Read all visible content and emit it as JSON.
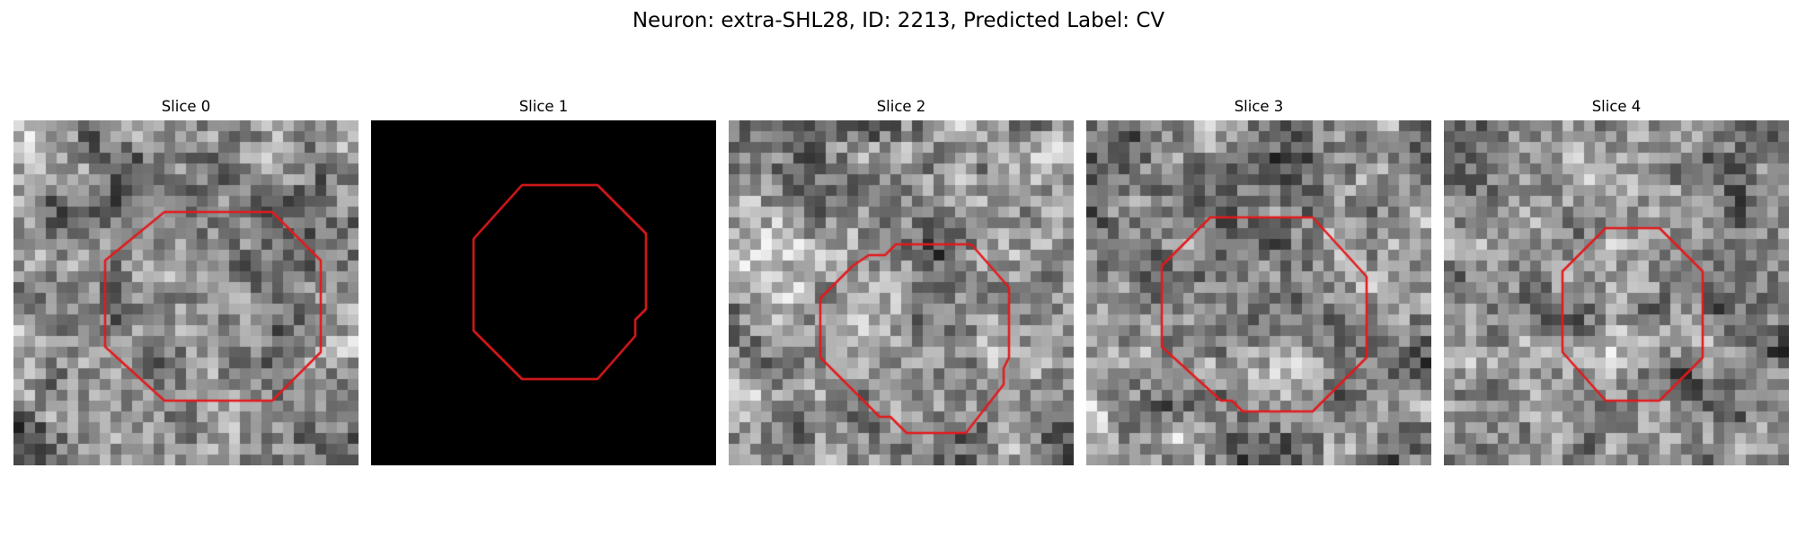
{
  "figure": {
    "title": "Neuron: extra-SHL28, ID: 2213, Predicted Label: CV"
  },
  "panels": [
    {
      "title": "Slice 0",
      "background": "grayscale-noise",
      "seed": 11,
      "contour": [
        [
          14,
          8.5
        ],
        [
          24,
          8.5
        ],
        [
          28.5,
          13
        ],
        [
          28.5,
          21.5
        ],
        [
          24,
          26
        ],
        [
          14,
          26
        ],
        [
          8.5,
          21
        ],
        [
          8.5,
          13
        ]
      ]
    },
    {
      "title": "Slice 1",
      "background": "black",
      "seed": 0,
      "contour": [
        [
          14,
          6
        ],
        [
          21,
          6
        ],
        [
          25.5,
          10.5
        ],
        [
          25.5,
          17.5
        ],
        [
          24.5,
          18.5
        ],
        [
          24.5,
          20
        ],
        [
          21,
          24
        ],
        [
          14,
          24
        ],
        [
          9.5,
          19.5
        ],
        [
          9.5,
          11
        ]
      ]
    },
    {
      "title": "Slice 2",
      "background": "grayscale-noise",
      "seed": 23,
      "contour": [
        [
          16.5,
          11.5
        ],
        [
          22.5,
          11.5
        ],
        [
          26,
          15.5
        ],
        [
          26,
          22
        ],
        [
          25.5,
          23
        ],
        [
          25.5,
          24.5
        ],
        [
          22,
          29
        ],
        [
          16.5,
          29
        ],
        [
          15,
          27.5
        ],
        [
          14,
          27.5
        ],
        [
          8.5,
          22
        ],
        [
          8.5,
          16.5
        ],
        [
          11.5,
          13.5
        ],
        [
          13,
          12.5
        ],
        [
          14.5,
          12.5
        ],
        [
          15.5,
          11.5
        ]
      ]
    },
    {
      "title": "Slice 3",
      "background": "grayscale-noise",
      "seed": 37,
      "contour": [
        [
          14,
          9
        ],
        [
          21,
          9
        ],
        [
          26,
          14.5
        ],
        [
          26,
          22
        ],
        [
          21,
          27
        ],
        [
          14.5,
          27
        ],
        [
          13.5,
          26
        ],
        [
          12.5,
          26
        ],
        [
          7,
          21
        ],
        [
          7,
          13.5
        ],
        [
          11.5,
          9
        ]
      ]
    },
    {
      "title": "Slice 4",
      "background": "grayscale-noise",
      "seed": 53,
      "contour": [
        [
          15,
          10
        ],
        [
          20,
          10
        ],
        [
          24,
          14
        ],
        [
          24,
          22
        ],
        [
          20,
          26
        ],
        [
          15,
          26
        ],
        [
          11,
          21.5
        ],
        [
          11,
          14
        ]
      ]
    }
  ],
  "style": {
    "contour_color": "#e31a1c",
    "background_color": "#ffffff",
    "black_color": "#000000"
  }
}
